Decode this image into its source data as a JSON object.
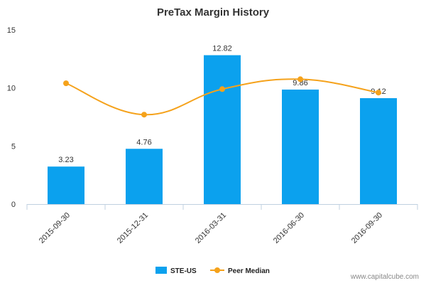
{
  "chart_data": {
    "type": "bar",
    "title": "PreTax Margin History",
    "xlabel": "",
    "ylabel": "",
    "ylim": [
      0,
      15
    ],
    "yticks": [
      0,
      5,
      10,
      15
    ],
    "categories": [
      "2015-09-30",
      "2015-12-31",
      "2016-03-31",
      "2016-06-30",
      "2016-09-30"
    ],
    "series": [
      {
        "name": "STE-US",
        "type": "bar",
        "color": "#0ba1ee",
        "values": [
          3.23,
          4.76,
          12.82,
          9.86,
          9.12
        ],
        "data_labels": [
          "3.23",
          "4.76",
          "12.82",
          "9.86",
          "9.12"
        ]
      },
      {
        "name": "Peer Median",
        "type": "line",
        "color": "#f5a21b",
        "values": [
          10.4,
          7.7,
          9.9,
          10.75,
          9.6
        ]
      }
    ],
    "grid": false,
    "legend_position": "bottom"
  },
  "watermark": "www.capitalcube.com"
}
